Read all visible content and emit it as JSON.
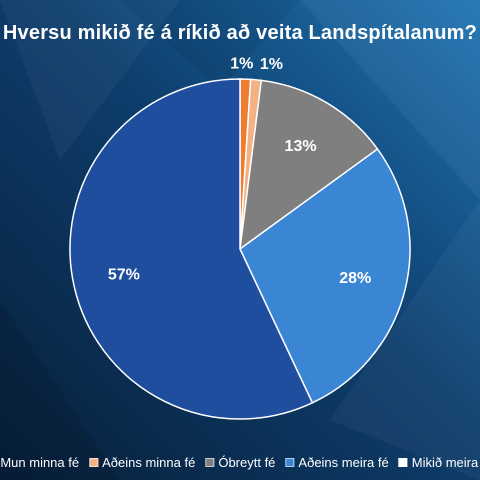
{
  "chart_data": {
    "type": "pie",
    "title": "Hversu mikið fé á ríkið að veita Landspítalanum?",
    "categories": [
      "Mun minna fé",
      "Aðeins minna fé",
      "Óbreytt fé",
      "Aðeins meira fé",
      "Mikið meira fé"
    ],
    "values": [
      1,
      1,
      13,
      28,
      57
    ],
    "data_labels": [
      "1%",
      "1%",
      "13%",
      "28%",
      "57%"
    ],
    "colors": [
      "#ED7D31",
      "#F4B183",
      "#7F7F7F",
      "#3A86D4",
      "#1F4E9E"
    ],
    "legend_position": "bottom"
  },
  "legend": {
    "items": [
      {
        "label": "Mun minna fé",
        "color": "#ED7D31"
      },
      {
        "label": "Aðeins minna fé",
        "color": "#F4B183"
      },
      {
        "label": "Óbreytt fé",
        "color": "#7F7F7F"
      },
      {
        "label": "Aðeins meira fé",
        "color": "#3A86D4"
      },
      {
        "label": "Mikið meira fé",
        "color": "#FFFFFF"
      }
    ]
  },
  "background_color": "#0F3F6F"
}
